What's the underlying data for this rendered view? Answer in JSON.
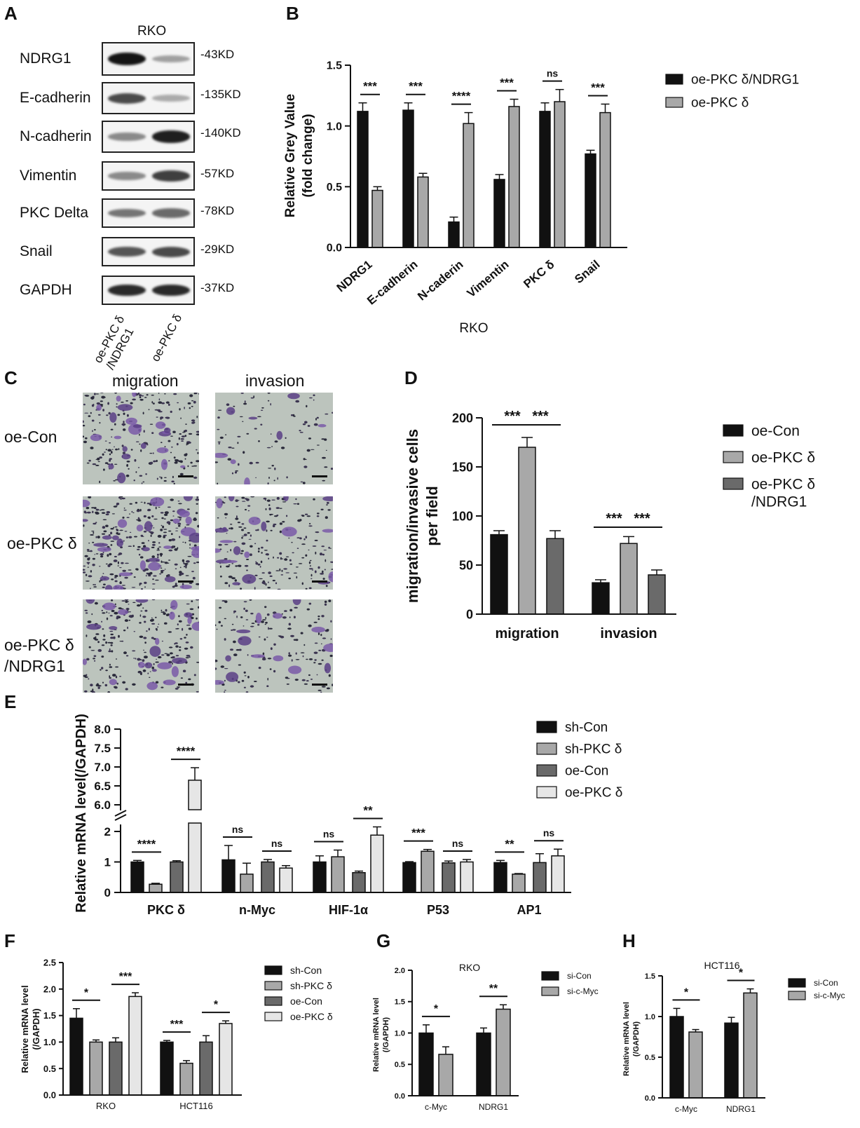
{
  "panels": {
    "A": {
      "label": "A",
      "title": "RKO",
      "blots": [
        {
          "name": "NDRG1",
          "kd": "-43KD",
          "i1": 1.0,
          "i2": 0.35
        },
        {
          "name": "E-cadherin",
          "kd": "-135KD",
          "i1": 0.75,
          "i2": 0.3
        },
        {
          "name": "N-cadherin",
          "kd": "-140KD",
          "i1": 0.45,
          "i2": 0.95
        },
        {
          "name": "Vimentin",
          "kd": "-57KD",
          "i1": 0.45,
          "i2": 0.8
        },
        {
          "name": "PKC Delta",
          "kd": "-78KD",
          "i1": 0.55,
          "i2": 0.6
        },
        {
          "name": "Snail",
          "kd": "-29KD",
          "i1": 0.7,
          "i2": 0.75
        },
        {
          "name": "GAPDH",
          "kd": "-37KD",
          "i1": 0.9,
          "i2": 0.9
        }
      ],
      "lanes": [
        "oe-PKC δ\n/NDRG1",
        "oe-PKC δ"
      ]
    },
    "C": {
      "label": "C",
      "cols": [
        "migration",
        "invasion"
      ],
      "rows": [
        "oe-Con",
        "oe-PKC δ",
        "oe-PKC δ\n/NDRG1"
      ]
    }
  },
  "chart_data": [
    {
      "panel": "B",
      "type": "bar",
      "title": "",
      "xlabel": "RKO",
      "ylabel": "Relative Grey Value\n(fold change)",
      "ylim": [
        0,
        1.5
      ],
      "yticks": [
        "0.0",
        "0.5",
        "1.0",
        "1.5"
      ],
      "categories": [
        "NDRG1",
        "E-cadherin",
        "N-caderin",
        "Vimentin",
        "PKC δ",
        "Snail"
      ],
      "series": [
        {
          "name": "oe-PKC δ/NDRG1",
          "color": "#111111",
          "values": [
            1.12,
            1.13,
            0.21,
            0.56,
            1.12,
            0.77
          ],
          "errors": [
            0.07,
            0.06,
            0.04,
            0.04,
            0.07,
            0.03
          ]
        },
        {
          "name": "oe-PKC δ",
          "color": "#a8a8a8",
          "values": [
            0.47,
            0.58,
            1.02,
            1.16,
            1.2,
            1.11
          ],
          "errors": [
            0.03,
            0.03,
            0.09,
            0.06,
            0.1,
            0.07
          ]
        }
      ],
      "significance": [
        "***",
        "***",
        "****",
        "***",
        "ns",
        "***"
      ]
    },
    {
      "panel": "D",
      "type": "bar",
      "title": "",
      "xlabel": "",
      "ylabel": "migration/invasive cells\nper field",
      "ylim": [
        0,
        200
      ],
      "yticks": [
        "0",
        "50",
        "100",
        "150",
        "200"
      ],
      "categories": [
        "migration",
        "invasion"
      ],
      "series": [
        {
          "name": "oe-Con",
          "color": "#111111",
          "values": [
            81,
            32
          ],
          "errors": [
            4,
            3
          ]
        },
        {
          "name": "oe-PKC δ",
          "color": "#a8a8a8",
          "values": [
            170,
            72
          ],
          "errors": [
            10,
            7
          ]
        },
        {
          "name": "oe-PKC δ\n/NDRG1",
          "color": "#6a6a6a",
          "values": [
            77,
            40
          ],
          "errors": [
            8,
            5
          ]
        }
      ],
      "significance": [
        {
          "group": 0,
          "from": 0,
          "to": 1,
          "text": "***"
        },
        {
          "group": 0,
          "from": 1,
          "to": 2,
          "text": "***"
        },
        {
          "group": 1,
          "from": 0,
          "to": 1,
          "text": "***"
        },
        {
          "group": 1,
          "from": 1,
          "to": 2,
          "text": "***"
        }
      ]
    },
    {
      "panel": "E",
      "type": "bar",
      "title": "",
      "xlabel": "",
      "ylabel": "Relative mRNA level(/GAPDH)",
      "ylim_lower": [
        0,
        2.3
      ],
      "ylim_upper": [
        6.0,
        8.0
      ],
      "yticks_lower": [
        "0",
        "1",
        "2"
      ],
      "yticks_upper": [
        "6.0",
        "6.5",
        "7.0",
        "7.5",
        "8.0"
      ],
      "categories": [
        "PKC δ",
        "n-Myc",
        "HIF-1α",
        "P53",
        "AP1"
      ],
      "series": [
        {
          "name": "sh-Con",
          "color": "#111111",
          "values": [
            1.0,
            1.07,
            1.0,
            0.98,
            0.98
          ],
          "errors": [
            0.05,
            0.47,
            0.2,
            0.03,
            0.07
          ]
        },
        {
          "name": "sh-PKC δ",
          "color": "#a8a8a8",
          "values": [
            0.27,
            0.6,
            1.17,
            1.35,
            0.6
          ],
          "errors": [
            0.03,
            0.36,
            0.22,
            0.06,
            0.02
          ]
        },
        {
          "name": "oe-Con",
          "color": "#6a6a6a",
          "values": [
            1.0,
            1.0,
            0.65,
            0.97,
            0.98
          ],
          "errors": [
            0.04,
            0.08,
            0.05,
            0.06,
            0.29
          ]
        },
        {
          "name": "oe-PKC δ",
          "color": "#e6e6e6",
          "values": [
            6.65,
            0.8,
            1.88,
            1.0,
            1.2
          ],
          "errors": [
            0.33,
            0.08,
            0.27,
            0.08,
            0.22
          ]
        }
      ],
      "significance": [
        {
          "group": 0,
          "pair": "sh",
          "text": "****"
        },
        {
          "group": 0,
          "pair": "oe",
          "text": "****"
        },
        {
          "group": 1,
          "pair": "sh",
          "text": "ns"
        },
        {
          "group": 1,
          "pair": "oe",
          "text": "ns"
        },
        {
          "group": 2,
          "pair": "sh",
          "text": "ns"
        },
        {
          "group": 2,
          "pair": "oe",
          "text": "**"
        },
        {
          "group": 3,
          "pair": "sh",
          "text": "***"
        },
        {
          "group": 3,
          "pair": "oe",
          "text": "ns"
        },
        {
          "group": 4,
          "pair": "sh",
          "text": "**"
        },
        {
          "group": 4,
          "pair": "oe",
          "text": "ns"
        }
      ]
    },
    {
      "panel": "F",
      "type": "bar",
      "title": "",
      "xlabel": "",
      "ylabel": "Relative mRNA level\n(/GAPDH)",
      "ylim": [
        0,
        2.5
      ],
      "yticks": [
        "0.0",
        "0.5",
        "1.0",
        "1.5",
        "2.0",
        "2.5"
      ],
      "categories": [
        "RKO",
        "HCT116"
      ],
      "series": [
        {
          "name": "sh-Con",
          "color": "#111111",
          "values": [
            1.45,
            1.0
          ],
          "errors": [
            0.18,
            0.03
          ]
        },
        {
          "name": "sh-PKC δ",
          "color": "#a8a8a8",
          "values": [
            1.0,
            0.6
          ],
          "errors": [
            0.04,
            0.05
          ]
        },
        {
          "name": "oe-Con",
          "color": "#6a6a6a",
          "values": [
            1.0,
            1.0
          ],
          "errors": [
            0.08,
            0.12
          ]
        },
        {
          "name": "oe-PKC δ",
          "color": "#e6e6e6",
          "values": [
            1.86,
            1.35
          ],
          "errors": [
            0.07,
            0.05
          ]
        }
      ],
      "significance": [
        {
          "group": 0,
          "pair": "sh",
          "text": "*"
        },
        {
          "group": 0,
          "pair": "oe",
          "text": "***"
        },
        {
          "group": 1,
          "pair": "sh",
          "text": "***"
        },
        {
          "group": 1,
          "pair": "oe",
          "text": "*"
        }
      ]
    },
    {
      "panel": "G",
      "type": "bar",
      "title": "RKO",
      "xlabel": "",
      "ylabel": "Relative mRNA level\n(/GAPDH)",
      "ylim": [
        0,
        2.0
      ],
      "yticks": [
        "0.0",
        "0.5",
        "1.0",
        "1.5",
        "2.0"
      ],
      "categories": [
        "c-Myc",
        "NDRG1"
      ],
      "series": [
        {
          "name": "si-Con",
          "color": "#111111",
          "values": [
            1.0,
            1.0
          ],
          "errors": [
            0.13,
            0.08
          ]
        },
        {
          "name": "si-c-Myc",
          "color": "#a8a8a8",
          "values": [
            0.66,
            1.38
          ],
          "errors": [
            0.12,
            0.07
          ]
        }
      ],
      "significance": [
        "*",
        "**"
      ]
    },
    {
      "panel": "H",
      "type": "bar",
      "title": "HCT116",
      "xlabel": "",
      "ylabel": "Relative mRNA level\n(/GAPDH)",
      "ylim": [
        0,
        1.5
      ],
      "yticks": [
        "0.0",
        "0.5",
        "1.0",
        "1.5"
      ],
      "categories": [
        "c-Myc",
        "NDRG1"
      ],
      "series": [
        {
          "name": "si-Con",
          "color": "#111111",
          "values": [
            1.0,
            0.92
          ],
          "errors": [
            0.1,
            0.07
          ]
        },
        {
          "name": "si-c-Myc",
          "color": "#a8a8a8",
          "values": [
            0.81,
            1.29
          ],
          "errors": [
            0.03,
            0.05
          ]
        }
      ],
      "significance": [
        "*",
        "*"
      ]
    }
  ]
}
